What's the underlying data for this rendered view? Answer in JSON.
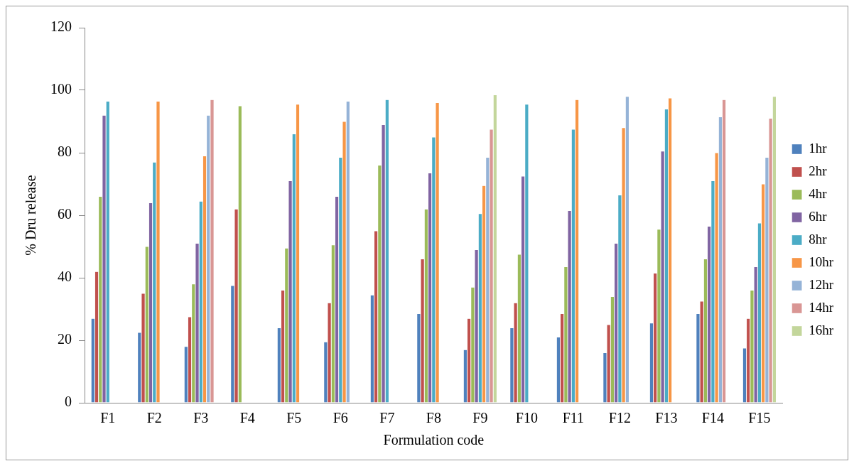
{
  "chart_data": {
    "type": "bar",
    "xlabel": "Formulation code",
    "ylabel": "% Dru release",
    "categories": [
      "F1",
      "F2",
      "F3",
      "F4",
      "F5",
      "F6",
      "F7",
      "F8",
      "F9",
      "F10",
      "F11",
      "F12",
      "F13",
      "F14",
      "F15"
    ],
    "ylim": [
      0,
      120
    ],
    "yticks": [
      0,
      20,
      40,
      60,
      80,
      100,
      120
    ],
    "grid": false,
    "legend": "right",
    "series": [
      {
        "name": "1hr",
        "color": "#4f81bd",
        "values": [
          27,
          22.5,
          18,
          37.5,
          24,
          19.5,
          34.5,
          28.5,
          17,
          24,
          21,
          16,
          25.5,
          28.5,
          17.5
        ]
      },
      {
        "name": "2hr",
        "color": "#c0504d",
        "values": [
          42,
          35,
          27.5,
          62,
          36,
          32,
          55,
          46,
          27,
          32,
          28.5,
          25,
          41.5,
          32.5,
          27
        ]
      },
      {
        "name": "4hr",
        "color": "#9bbb59",
        "values": [
          66,
          50,
          38,
          95,
          49.5,
          50.5,
          76,
          62,
          37,
          47.5,
          43.5,
          34,
          55.5,
          46,
          36
        ]
      },
      {
        "name": "6hr",
        "color": "#8064a2",
        "values": [
          92,
          64,
          51,
          null,
          71,
          66,
          89,
          73.5,
          49,
          72.5,
          61.5,
          51,
          80.5,
          56.5,
          43.5
        ]
      },
      {
        "name": "8hr",
        "color": "#4bacc6",
        "values": [
          96.5,
          77,
          64.5,
          null,
          86,
          78.5,
          97,
          85,
          60.5,
          95.5,
          87.5,
          66.5,
          94,
          71,
          57.5
        ]
      },
      {
        "name": "10hr",
        "color": "#f79646",
        "values": [
          null,
          96.5,
          79,
          null,
          95.5,
          90,
          null,
          96,
          69.5,
          null,
          97,
          88,
          97.5,
          80,
          70
        ]
      },
      {
        "name": "12hr",
        "color": "#95b3d7",
        "values": [
          null,
          null,
          92,
          null,
          null,
          96.5,
          null,
          null,
          78.5,
          null,
          null,
          98,
          null,
          91.5,
          78.5
        ]
      },
      {
        "name": "14hr",
        "color": "#d99694",
        "values": [
          null,
          null,
          97,
          null,
          null,
          null,
          null,
          null,
          87.5,
          null,
          null,
          null,
          null,
          97,
          91
        ]
      },
      {
        "name": "16hr",
        "color": "#c3d69b",
        "values": [
          null,
          null,
          null,
          null,
          null,
          null,
          null,
          null,
          98.5,
          null,
          null,
          null,
          null,
          null,
          98
        ]
      }
    ]
  }
}
